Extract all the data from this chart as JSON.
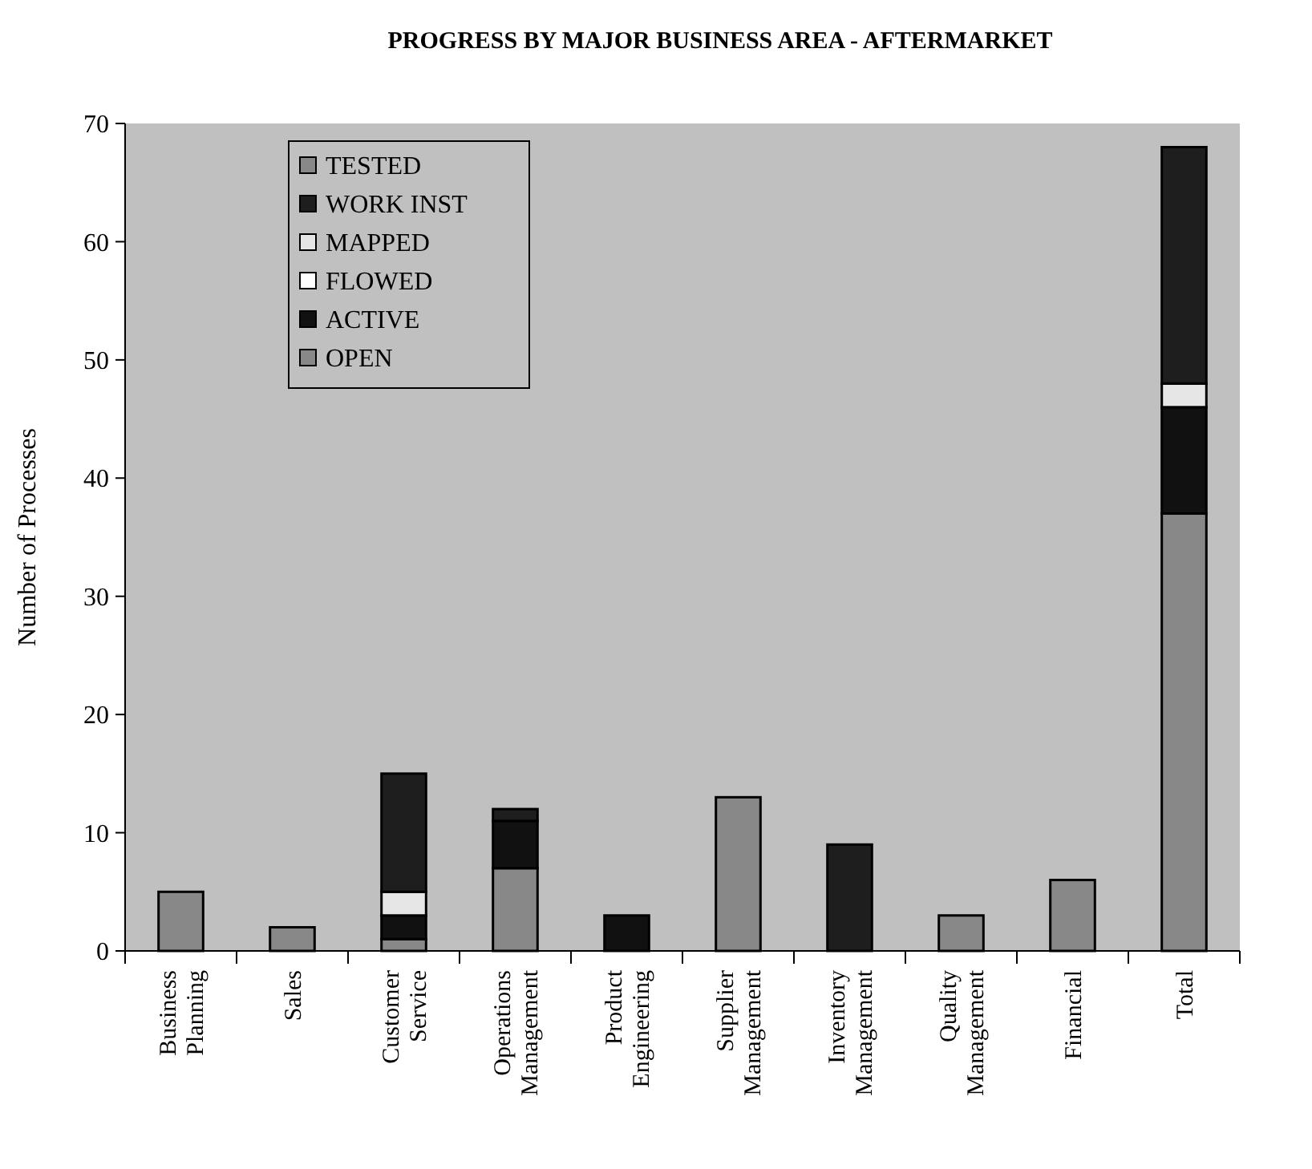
{
  "chart_data": {
    "type": "bar",
    "title": "PROGRESS BY MAJOR BUSINESS AREA - AFTERMARKET",
    "ylabel": "Number of Processes",
    "categories": [
      "Business Planning",
      "Sales",
      "Customer Service",
      "Operations Management",
      "Product Engineering",
      "Supplier Management",
      "Inventory Management",
      "Quality Management",
      "Financial",
      "Total"
    ],
    "stacked": true,
    "series": [
      {
        "name": "OPEN",
        "color": "#888888",
        "values": [
          5,
          2,
          1,
          7,
          0,
          13,
          0,
          3,
          6,
          37
        ]
      },
      {
        "name": "ACTIVE",
        "color": "#111111",
        "values": [
          0,
          0,
          2,
          4,
          3,
          0,
          0,
          0,
          0,
          9
        ]
      },
      {
        "name": "FLOWED",
        "color": "#ffffff",
        "values": [
          0,
          0,
          0,
          0,
          0,
          0,
          0,
          0,
          0,
          0
        ]
      },
      {
        "name": "MAPPED",
        "color": "#e6e6e6",
        "values": [
          0,
          0,
          2,
          0,
          0,
          0,
          0,
          0,
          0,
          2
        ]
      },
      {
        "name": "WORK INST",
        "color": "#1e1e1e",
        "values": [
          0,
          0,
          10,
          1,
          0,
          0,
          9,
          0,
          0,
          20
        ]
      },
      {
        "name": "TESTED",
        "color": "#888888",
        "values": [
          0,
          0,
          0,
          0,
          0,
          0,
          0,
          0,
          0,
          0
        ]
      }
    ],
    "ylim": [
      0,
      70
    ],
    "yticks": [
      0,
      10,
      20,
      30,
      40,
      50,
      60,
      70
    ],
    "grid": false,
    "legend": "top left"
  }
}
